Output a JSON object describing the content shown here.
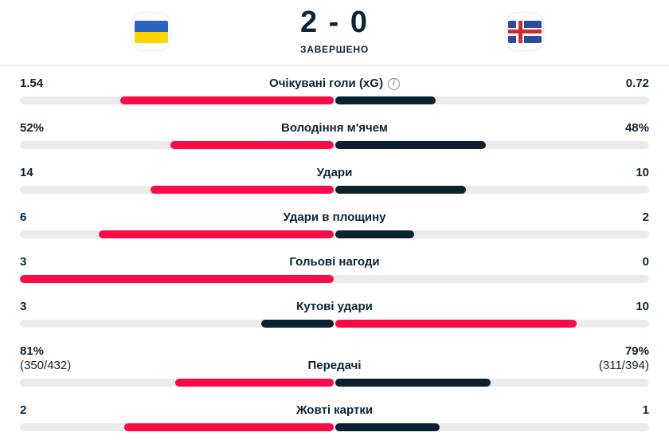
{
  "header": {
    "score": "2 - 0",
    "status": "ЗАВЕРШЕНО",
    "home_flag": "ukraine-flag",
    "away_flag": "iceland-flag"
  },
  "colors": {
    "leader_bar": "#fa0a46",
    "trailer_bar": "#0b222e",
    "track": "#ebebeb",
    "text": "#0e2333",
    "divider": "#e5e5e5",
    "ukraine_blue": "#2b63c4",
    "ukraine_yellow": "#ffd501",
    "iceland_blue": "#2e4a9b",
    "iceland_red": "#d5282e"
  },
  "icons": {
    "info": "info-icon"
  },
  "stats": [
    {
      "label": "Очікувані голи (xG)",
      "info_icon": true,
      "home": "1.54",
      "away": "0.72",
      "home_val": 1.54,
      "away_val": 0.72,
      "leader": "home"
    },
    {
      "label": "Володіння м'ячем",
      "home": "52%",
      "away": "48%",
      "home_val": 52,
      "away_val": 48,
      "leader": "home"
    },
    {
      "label": "Удари",
      "home": "14",
      "away": "10",
      "home_val": 14,
      "away_val": 10,
      "leader": "home"
    },
    {
      "label": "Удари в площину",
      "home": "6",
      "away": "2",
      "home_val": 6,
      "away_val": 2,
      "leader": "home"
    },
    {
      "label": "Гольові нагоди",
      "home": "3",
      "away": "0",
      "home_val": 3,
      "away_val": 0,
      "leader": "home"
    },
    {
      "label": "Кутові удари",
      "home": "3",
      "away": "10",
      "home_val": 3,
      "away_val": 10,
      "leader": "away"
    },
    {
      "label": "Передачі",
      "home": "81%",
      "home_sub": "(350/432)",
      "away": "79%",
      "away_sub": "(311/394)",
      "home_val": 81,
      "away_val": 79,
      "leader": "home"
    },
    {
      "label": "Жовті картки",
      "home": "2",
      "away": "1",
      "home_val": 2,
      "away_val": 1,
      "leader": "home"
    }
  ]
}
